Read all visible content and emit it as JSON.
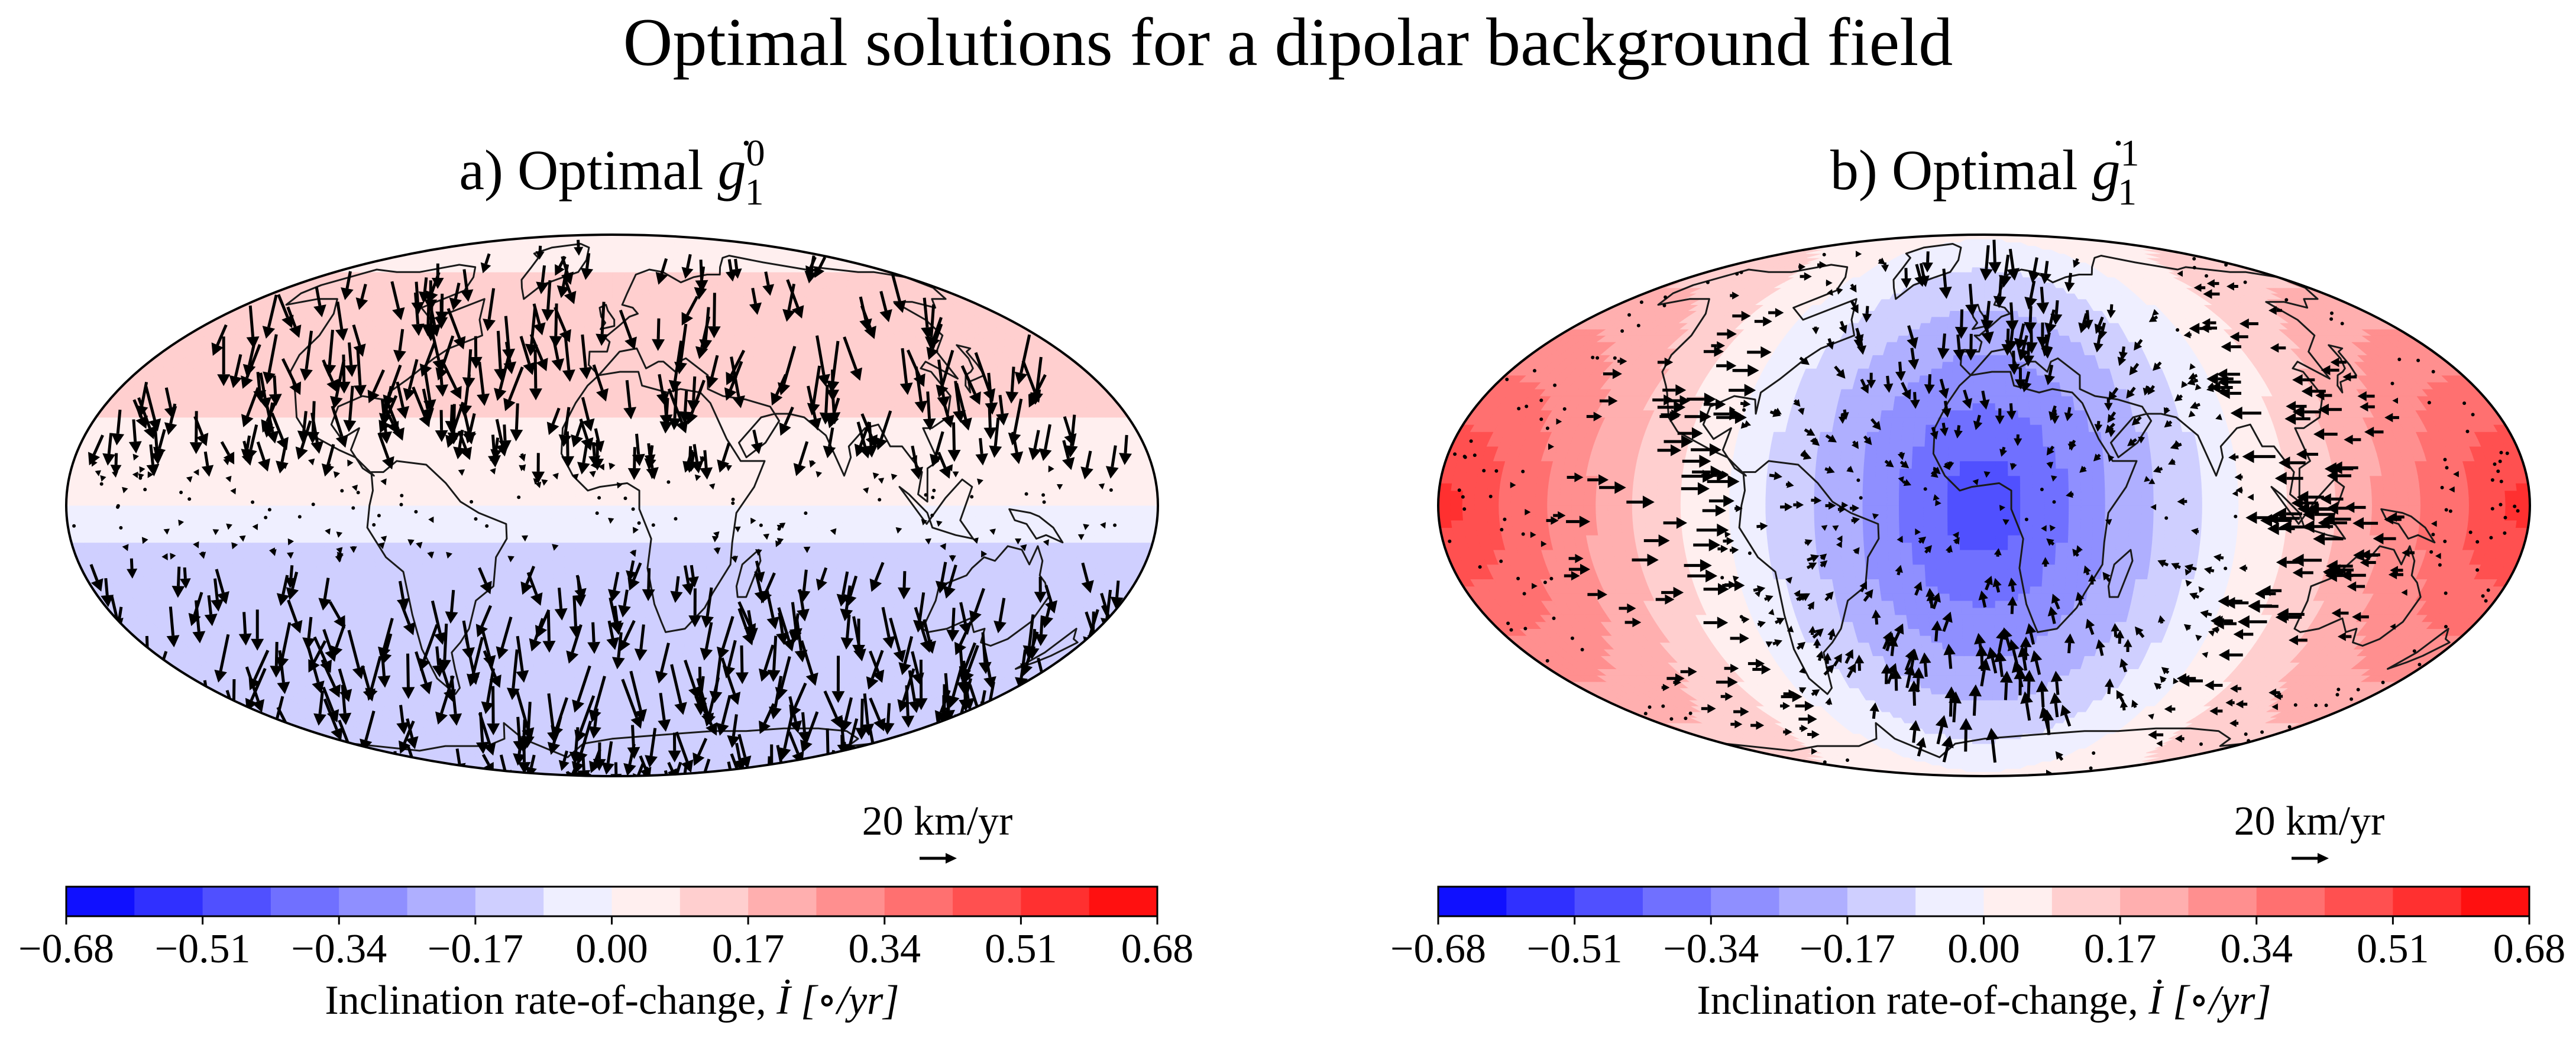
{
  "figure": {
    "title": "Optimal solutions for a dipolar background field"
  },
  "panels": [
    {
      "id": "a",
      "title_prefix": "a) Optimal ",
      "symbol": "g",
      "sup": "0",
      "sub": "1",
      "field_pattern": "zonal",
      "key": {
        "label": "20 km/yr",
        "speed_km_per_yr": 20
      },
      "colorbar": {
        "label_prefix": "Inclination rate-of-change, ",
        "label_symbol": "İ",
        "label_units": "[∘/yr]",
        "ticks": [
          "−0.68",
          "−0.51",
          "−0.34",
          "−0.17",
          "0.00",
          "0.17",
          "0.34",
          "0.51",
          "0.68"
        ]
      }
    },
    {
      "id": "b",
      "title_prefix": "b) Optimal ",
      "symbol": "g",
      "sup": "1",
      "sub": "1",
      "field_pattern": "sectoral",
      "key": {
        "label": "20 km/yr",
        "speed_km_per_yr": 20
      },
      "colorbar": {
        "label_prefix": "Inclination rate-of-change, ",
        "label_symbol": "İ",
        "label_units": "[∘/yr]",
        "ticks": [
          "−0.68",
          "−0.51",
          "−0.34",
          "−0.17",
          "0.00",
          "0.17",
          "0.34",
          "0.51",
          "0.68"
        ]
      }
    }
  ],
  "chart_data": [
    {
      "type": "heatmap",
      "projection": "Mollweide",
      "title": "a) Optimal ġ₁⁰",
      "colorbar": {
        "min": -0.68,
        "max": 0.68,
        "levels": 16,
        "colormap": "bwr",
        "label": "Inclination rate-of-change, İ [∘/yr]"
      },
      "overlay": "flow-velocity vectors with coastlines",
      "description_of_field": "positive (red) in northern hemisphere, negative (blue) in southern hemisphere, near zero at equator",
      "vector_key": "20 km/yr",
      "band_values": [
        {
          "lat_range": [
            70,
            90
          ],
          "value": 0.06
        },
        {
          "lat_range": [
            25,
            70
          ],
          "value": 0.13
        },
        {
          "lat_range": [
            10,
            25
          ],
          "value": 0.08
        },
        {
          "lat_range": [
            0,
            10
          ],
          "value": 0.02
        },
        {
          "lat_range": [
            -10,
            0
          ],
          "value": -0.04
        },
        {
          "lat_range": [
            -25,
            -10
          ],
          "value": -0.09
        },
        {
          "lat_range": [
            -70,
            -25
          ],
          "value": -0.17
        },
        {
          "lat_range": [
            -90,
            -70
          ],
          "value": -0.09
        }
      ]
    },
    {
      "type": "heatmap",
      "projection": "Mollweide",
      "title": "b) Optimal ġ₁¹",
      "colorbar": {
        "min": -0.68,
        "max": 0.68,
        "levels": 16,
        "colormap": "bwr",
        "label": "Inclination rate-of-change, İ [∘/yr]"
      },
      "overlay": "flow-velocity vectors with coastlines",
      "description_of_field": "minimum about −0.50 centred near lon 0 lat 0 (Africa); maximum about +0.55 near lon ±180 (Pacific); concentric contour rings",
      "vector_key": "20 km/yr",
      "center_min": {
        "lon": 0,
        "lat": 0,
        "value": -0.5
      },
      "antipode_max": {
        "lon": 180,
        "lat": 0,
        "value": 0.55
      }
    }
  ]
}
